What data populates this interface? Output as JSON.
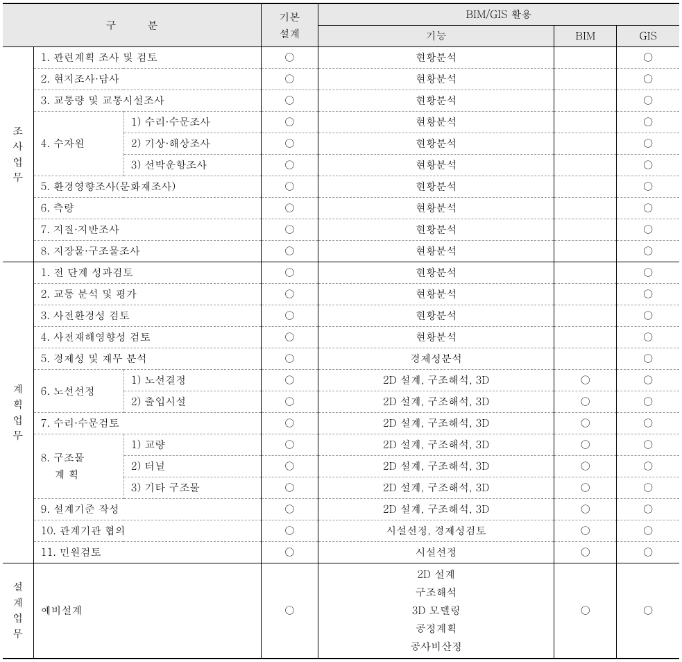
{
  "header": {
    "category": "구　　　분",
    "basic_design": "기본\n설계",
    "bimgis_usage": "BIM/GIS 활용",
    "function": "기능",
    "bim": "BIM",
    "gis": "GIS"
  },
  "mark": "○",
  "sections": [
    {
      "name": "조사업무",
      "rows": [
        {
          "sub1": "1. 관련계획 조사 및 검토",
          "sub2": "",
          "basic": "○",
          "func": "현황분석",
          "bim": "",
          "gis": "○",
          "span12": true
        },
        {
          "sub1": "2. 현지조사·답사",
          "sub2": "",
          "basic": "○",
          "func": "현황분석",
          "bim": "",
          "gis": "○",
          "span12": true
        },
        {
          "sub1": "3. 교통량 및 교통시설조사",
          "sub2": "",
          "basic": "○",
          "func": "현황분석",
          "bim": "",
          "gis": "○",
          "span12": true
        },
        {
          "sub1": "4. 수자원",
          "sub2": "1) 수리·수문조사",
          "basic": "○",
          "func": "현황분석",
          "bim": "",
          "gis": "○",
          "rowspan": 3
        },
        {
          "sub2": "2) 기상·해상조사",
          "basic": "○",
          "func": "현황분석",
          "bim": "",
          "gis": "○"
        },
        {
          "sub2": "3) 선박운항조사",
          "basic": "○",
          "func": "현황분석",
          "bim": "",
          "gis": "○"
        },
        {
          "sub1": "5. 환경영향조사(문화재조사)",
          "sub2": "",
          "basic": "○",
          "func": "현황분석",
          "bim": "",
          "gis": "○",
          "span12": true
        },
        {
          "sub1": "6. 측량",
          "sub2": "",
          "basic": "○",
          "func": "현황분석",
          "bim": "",
          "gis": "○",
          "span12": true
        },
        {
          "sub1": "7. 지질·지반조사",
          "sub2": "",
          "basic": "○",
          "func": "현황분석",
          "bim": "",
          "gis": "○",
          "span12": true
        },
        {
          "sub1": "8. 지장물·구조물조사",
          "sub2": "",
          "basic": "○",
          "func": "현황분석",
          "bim": "",
          "gis": "○",
          "span12": true
        }
      ]
    },
    {
      "name": "계획업무",
      "rows": [
        {
          "sub1": "1. 전 단계 성과검토",
          "sub2": "",
          "basic": "○",
          "func": "현황분석",
          "bim": "",
          "gis": "○",
          "span12": true
        },
        {
          "sub1": "2. 교통 분석 및 평가",
          "sub2": "",
          "basic": "○",
          "func": "현황분석",
          "bim": "",
          "gis": "○",
          "span12": true
        },
        {
          "sub1": "3. 사전환경성 검토",
          "sub2": "",
          "basic": "○",
          "func": "현황분석",
          "bim": "",
          "gis": "○",
          "span12": true
        },
        {
          "sub1": "4. 사전재해영향성 검토",
          "sub2": "",
          "basic": "○",
          "func": "현황분석",
          "bim": "",
          "gis": "○",
          "span12": true
        },
        {
          "sub1": "5. 경제성 및 재무 분석",
          "sub2": "",
          "basic": "○",
          "func": "경제성분석",
          "bim": "",
          "gis": "○",
          "span12": true
        },
        {
          "sub1": "6. 노선선정",
          "sub2": "1) 노선결정",
          "basic": "○",
          "func": "2D 설계, 구조해석, 3D",
          "bim": "○",
          "gis": "○",
          "rowspan": 2
        },
        {
          "sub2": "2) 출입시설",
          "basic": "○",
          "func": "2D 설계, 구조해석, 3D",
          "bim": "○",
          "gis": "○"
        },
        {
          "sub1": "7. 수리·수문검토",
          "sub2": "",
          "basic": "○",
          "func": "2D 설계, 구조해석, 3D",
          "bim": "○",
          "gis": "○",
          "span12": true
        },
        {
          "sub1": "8. 구조물\n　 계 획",
          "sub2": "1) 교량",
          "basic": "○",
          "func": "2D 설계, 구조해석, 3D",
          "bim": "○",
          "gis": "○",
          "rowspan": 3
        },
        {
          "sub2": "2) 터널",
          "basic": "○",
          "func": "2D 설계, 구조해석, 3D",
          "bim": "○",
          "gis": "○"
        },
        {
          "sub2": "3) 기타 구조물",
          "basic": "○",
          "func": "2D 설계, 구조해석, 3D",
          "bim": "○",
          "gis": "○"
        },
        {
          "sub1": "9. 설계기준 작성",
          "sub2": "",
          "basic": "○",
          "func": "2D 설계, 구조해석, 3D",
          "bim": "○",
          "gis": "○",
          "span12": true
        },
        {
          "sub1": "10. 관계기관 협의",
          "sub2": "",
          "basic": "○",
          "func": "시설선정, 경제성검토",
          "bim": "○",
          "gis": "○",
          "span12": true
        },
        {
          "sub1": "11. 민원검토",
          "sub2": "",
          "basic": "○",
          "func": "시설선정",
          "bim": "○",
          "gis": "○",
          "span12": true
        }
      ]
    },
    {
      "name": "설계업무",
      "rows": [
        {
          "sub1": "예비설계",
          "sub2": "",
          "basic": "○",
          "func": "2D 설계\n구조해석\n3D 모델링\n공정계획\n공사비산정",
          "bim": "○",
          "gis": "○",
          "span12": true,
          "tall": true
        }
      ]
    }
  ]
}
